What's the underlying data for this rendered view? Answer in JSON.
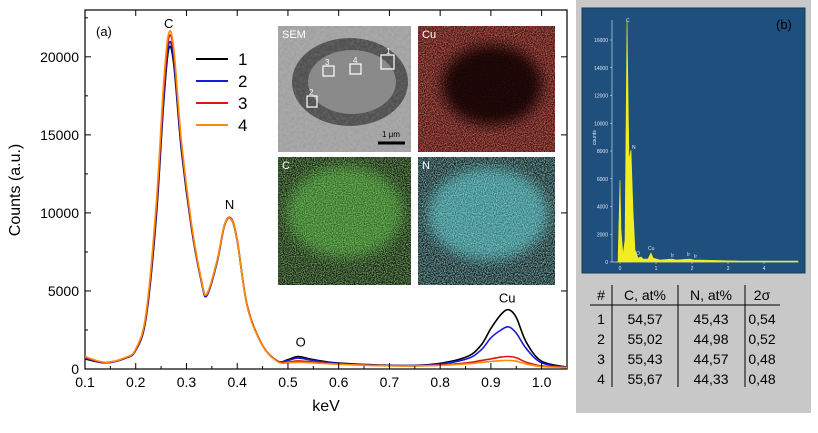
{
  "chart_data": [
    {
      "panel": "(a)",
      "type": "line",
      "xlabel": "keV",
      "ylabel": "Counts (a.u.)",
      "xlim": [
        0.1,
        1.05
      ],
      "ylim": [
        0,
        23000
      ],
      "xticks": [
        "0.1",
        "0.2",
        "0.3",
        "0.4",
        "0.5",
        "0.6",
        "0.7",
        "0.8",
        "0.9",
        "1.0"
      ],
      "yticks": [
        "0",
        "5000",
        "10000",
        "15000",
        "20000"
      ],
      "peak_labels": [
        {
          "text": "C",
          "x": 0.265,
          "y": 21600
        },
        {
          "text": "N",
          "x": 0.385,
          "y": 10000
        },
        {
          "text": "O",
          "x": 0.525,
          "y": 1200
        },
        {
          "text": "Cu",
          "x": 0.932,
          "y": 4000
        }
      ],
      "legend": [
        "1",
        "2",
        "3",
        "4"
      ],
      "series": [
        {
          "name": "1",
          "color": "#000000",
          "x": [
            0.1,
            0.14,
            0.18,
            0.2,
            0.22,
            0.24,
            0.255,
            0.265,
            0.275,
            0.29,
            0.31,
            0.33,
            0.34,
            0.36,
            0.375,
            0.388,
            0.4,
            0.42,
            0.45,
            0.48,
            0.5,
            0.52,
            0.55,
            0.6,
            0.7,
            0.78,
            0.85,
            0.88,
            0.9,
            0.92,
            0.935,
            0.95,
            0.97,
            1.0,
            1.05
          ],
          "y": [
            650,
            400,
            700,
            1200,
            3200,
            9500,
            17000,
            20500,
            19500,
            14000,
            9000,
            5500,
            4700,
            6800,
            9200,
            9600,
            8200,
            4000,
            1500,
            500,
            600,
            800,
            600,
            380,
            240,
            280,
            750,
            1500,
            2600,
            3500,
            3800,
            3300,
            1700,
            500,
            120
          ]
        },
        {
          "name": "2",
          "color": "#1a1adc",
          "x": [
            0.1,
            0.14,
            0.18,
            0.2,
            0.22,
            0.24,
            0.255,
            0.265,
            0.275,
            0.29,
            0.31,
            0.33,
            0.34,
            0.36,
            0.375,
            0.388,
            0.4,
            0.42,
            0.45,
            0.48,
            0.5,
            0.52,
            0.55,
            0.6,
            0.7,
            0.78,
            0.85,
            0.88,
            0.9,
            0.92,
            0.935,
            0.95,
            0.97,
            1.0,
            1.05
          ],
          "y": [
            700,
            400,
            700,
            1200,
            3300,
            9800,
            17300,
            20800,
            19800,
            14200,
            9100,
            5500,
            4700,
            6800,
            9200,
            9650,
            8250,
            4000,
            1500,
            500,
            550,
            700,
            550,
            350,
            230,
            260,
            620,
            1200,
            2000,
            2500,
            2700,
            2300,
            1300,
            400,
            110
          ]
        },
        {
          "name": "3",
          "color": "#dc1414",
          "x": [
            0.1,
            0.14,
            0.18,
            0.2,
            0.22,
            0.24,
            0.255,
            0.265,
            0.275,
            0.29,
            0.31,
            0.33,
            0.34,
            0.36,
            0.375,
            0.388,
            0.4,
            0.42,
            0.45,
            0.48,
            0.5,
            0.52,
            0.55,
            0.6,
            0.7,
            0.78,
            0.85,
            0.88,
            0.9,
            0.92,
            0.935,
            0.95,
            0.97,
            1.0,
            1.05
          ],
          "y": [
            750,
            420,
            720,
            1250,
            3400,
            10100,
            17800,
            21200,
            20300,
            14500,
            9200,
            5600,
            4800,
            6900,
            9250,
            9650,
            8300,
            4000,
            1500,
            480,
            450,
            520,
            450,
            320,
            210,
            220,
            380,
            540,
            650,
            760,
            800,
            720,
            430,
            200,
            100
          ]
        },
        {
          "name": "4",
          "color": "#ff8c00",
          "x": [
            0.1,
            0.14,
            0.18,
            0.2,
            0.22,
            0.24,
            0.255,
            0.265,
            0.275,
            0.29,
            0.31,
            0.33,
            0.34,
            0.36,
            0.375,
            0.388,
            0.4,
            0.42,
            0.45,
            0.48,
            0.5,
            0.52,
            0.55,
            0.6,
            0.7,
            0.78,
            0.85,
            0.88,
            0.9,
            0.92,
            0.935,
            0.95,
            0.97,
            1.0,
            1.05
          ],
          "y": [
            800,
            430,
            740,
            1280,
            3500,
            10400,
            18300,
            21500,
            20500,
            14600,
            9300,
            5600,
            4800,
            6900,
            9250,
            9600,
            8250,
            3950,
            1480,
            460,
            400,
            430,
            390,
            300,
            200,
            210,
            320,
            420,
            480,
            530,
            550,
            500,
            320,
            160,
            90
          ]
        }
      ]
    },
    {
      "panel": "(b)",
      "type": "area",
      "ylabel": "counts",
      "yticks": [
        "0",
        "2000",
        "4000",
        "6000",
        "8000",
        "10000",
        "12000",
        "14000",
        "16000"
      ],
      "xticks": [
        "0",
        "1",
        "2",
        "3",
        "4"
      ],
      "peak_labels": [
        "C",
        "N",
        "O",
        "Cu",
        "Ir",
        "Ir",
        "Ir"
      ]
    }
  ],
  "inset": {
    "maps": [
      {
        "title": "SEM",
        "color": "#a0a0a0"
      },
      {
        "title": "Cu",
        "color": "#c4231c"
      },
      {
        "title": "C",
        "color": "#4fae38"
      },
      {
        "title": "N",
        "color": "#5fc4c9"
      }
    ],
    "regions": [
      "1",
      "2",
      "3",
      "4"
    ],
    "scale_bar": "1 μm"
  },
  "table": {
    "headers": [
      "#",
      "C, at%",
      "N, at%",
      "2σ"
    ],
    "rows": [
      [
        "1",
        "54,57",
        "45,43",
        "0,54"
      ],
      [
        "2",
        "55,02",
        "44,98",
        "0,52"
      ],
      [
        "3",
        "55,43",
        "44,57",
        "0,48"
      ],
      [
        "4",
        "55,67",
        "44,33",
        "0,48"
      ]
    ]
  }
}
